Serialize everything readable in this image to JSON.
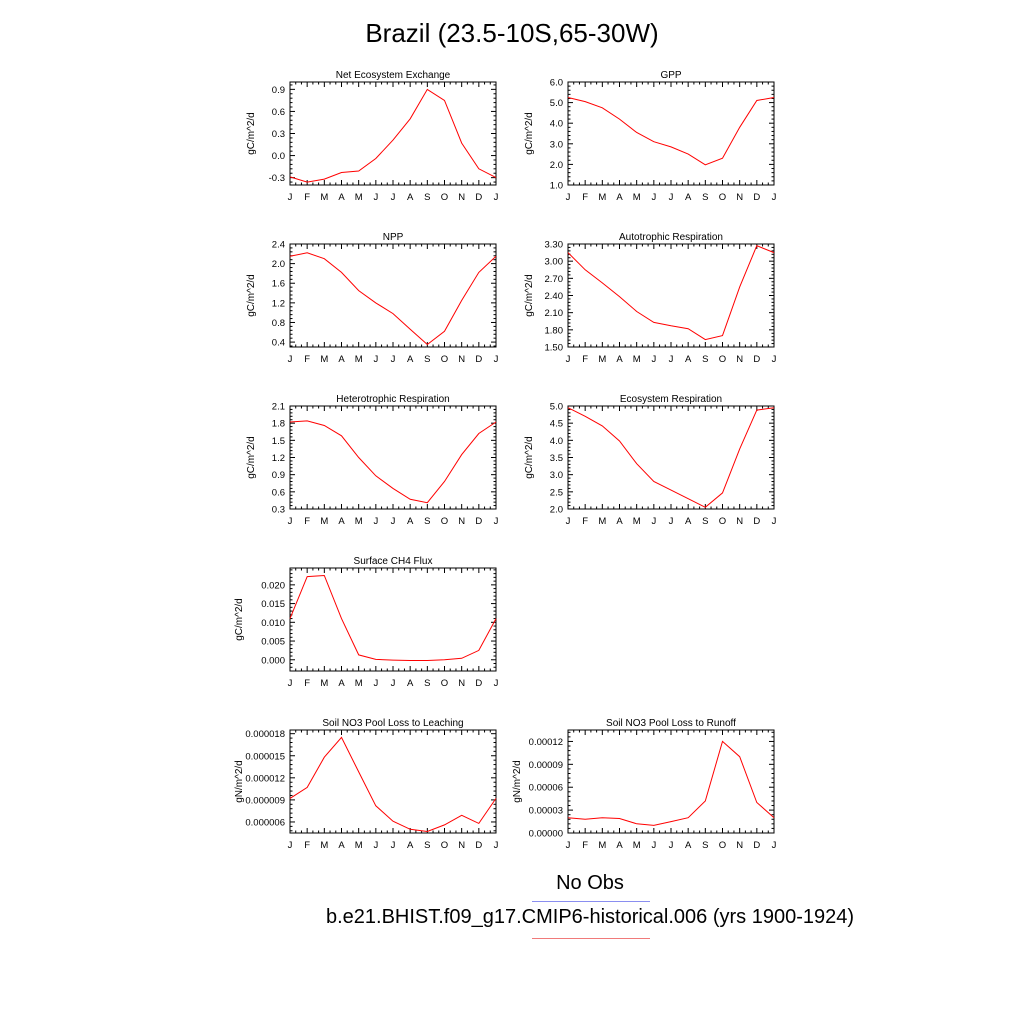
{
  "title": "Brazil (23.5-10S,65-30W)",
  "legend": {
    "obs_label": "No Obs",
    "case_label": "b.e21.BHIST.f09_g17.CMIP6-historical.006 (yrs 1900-1924)",
    "obs_color": "#8a8ef0",
    "case_color": "#f07a7a"
  },
  "line_color": "#ff0000",
  "chart_data": [
    {
      "type": "line",
      "title": "Net Ecosystem Exchange",
      "ylabel": "gC/m^2/d",
      "x": [
        "J",
        "F",
        "M",
        "A",
        "M",
        "J",
        "J",
        "A",
        "S",
        "O",
        "N",
        "D",
        "J"
      ],
      "ylim": [
        -0.4,
        1.0
      ],
      "yticks": [
        "-0.3",
        "0.0",
        "0.3",
        "0.6",
        "0.9"
      ],
      "series": [
        {
          "values": [
            -0.29,
            -0.36,
            -0.32,
            -0.23,
            -0.21,
            -0.04,
            0.21,
            0.5,
            0.9,
            0.75,
            0.17,
            -0.18,
            -0.3
          ]
        }
      ]
    },
    {
      "type": "line",
      "title": "GPP",
      "ylabel": "gC/m^2/d",
      "x": [
        "J",
        "F",
        "M",
        "A",
        "M",
        "J",
        "J",
        "A",
        "S",
        "O",
        "N",
        "D",
        "J"
      ],
      "ylim": [
        1.0,
        6.0
      ],
      "yticks": [
        "1.0",
        "2.0",
        "3.0",
        "4.0",
        "5.0",
        "6.0"
      ],
      "series": [
        {
          "values": [
            5.25,
            5.05,
            4.75,
            4.2,
            3.55,
            3.1,
            2.85,
            2.5,
            1.98,
            2.3,
            3.8,
            5.1,
            5.25
          ]
        }
      ]
    },
    {
      "type": "line",
      "title": "NPP",
      "ylabel": "gC/m^2/d",
      "x": [
        "J",
        "F",
        "M",
        "A",
        "M",
        "J",
        "J",
        "A",
        "S",
        "O",
        "N",
        "D",
        "J"
      ],
      "ylim": [
        0.3,
        2.4
      ],
      "yticks": [
        "0.4",
        "0.8",
        "1.2",
        "1.6",
        "2.0",
        "2.4"
      ],
      "series": [
        {
          "values": [
            2.15,
            2.22,
            2.1,
            1.82,
            1.45,
            1.2,
            0.98,
            0.66,
            0.35,
            0.62,
            1.25,
            1.82,
            2.15
          ]
        }
      ]
    },
    {
      "type": "line",
      "title": "Autotrophic Respiration",
      "ylabel": "gC/m^2/d",
      "x": [
        "J",
        "F",
        "M",
        "A",
        "M",
        "J",
        "J",
        "A",
        "S",
        "O",
        "N",
        "D",
        "J"
      ],
      "ylim": [
        1.5,
        3.3
      ],
      "yticks": [
        "1.50",
        "1.80",
        "2.10",
        "2.40",
        "2.70",
        "3.00",
        "3.30"
      ],
      "series": [
        {
          "values": [
            3.15,
            2.85,
            2.62,
            2.38,
            2.12,
            1.93,
            1.87,
            1.82,
            1.63,
            1.7,
            2.55,
            3.27,
            3.15
          ]
        }
      ]
    },
    {
      "type": "line",
      "title": "Heterotrophic Respiration",
      "ylabel": "gC/m^2/d",
      "x": [
        "J",
        "F",
        "M",
        "A",
        "M",
        "J",
        "J",
        "A",
        "S",
        "O",
        "N",
        "D",
        "J"
      ],
      "ylim": [
        0.3,
        2.1
      ],
      "yticks": [
        "0.3",
        "0.6",
        "0.9",
        "1.2",
        "1.5",
        "1.8",
        "2.1"
      ],
      "series": [
        {
          "values": [
            1.82,
            1.84,
            1.76,
            1.58,
            1.2,
            0.88,
            0.66,
            0.47,
            0.41,
            0.78,
            1.25,
            1.62,
            1.82
          ]
        }
      ]
    },
    {
      "type": "line",
      "title": "Ecosystem Respiration",
      "ylabel": "gC/m^2/d",
      "x": [
        "J",
        "F",
        "M",
        "A",
        "M",
        "J",
        "J",
        "A",
        "S",
        "O",
        "N",
        "D",
        "J"
      ],
      "ylim": [
        2.0,
        5.0
      ],
      "yticks": [
        "2.0",
        "2.5",
        "3.0",
        "3.5",
        "4.0",
        "4.5",
        "5.0"
      ],
      "series": [
        {
          "values": [
            4.95,
            4.7,
            4.42,
            3.98,
            3.32,
            2.8,
            2.55,
            2.3,
            2.05,
            2.47,
            3.75,
            4.88,
            4.95
          ]
        }
      ]
    },
    {
      "type": "line",
      "title": "Surface CH4 Flux",
      "ylabel": "gC/m^2/d",
      "x": [
        "J",
        "F",
        "M",
        "A",
        "M",
        "J",
        "J",
        "A",
        "S",
        "O",
        "N",
        "D",
        "J"
      ],
      "ylim": [
        -0.003,
        0.0245
      ],
      "yticks": [
        "0.000",
        "0.005",
        "0.010",
        "0.015",
        "0.020"
      ],
      "series": [
        {
          "values": [
            0.011,
            0.0222,
            0.0225,
            0.011,
            0.0013,
            0.0001,
            -0.0001,
            -0.0002,
            -0.0002,
            0.0,
            0.0004,
            0.0025,
            0.011
          ]
        }
      ]
    },
    {
      "type": "line",
      "title": "Soil NO3 Pool Loss to Leaching",
      "ylabel": "gN/m^2/d",
      "x": [
        "J",
        "F",
        "M",
        "A",
        "M",
        "J",
        "J",
        "A",
        "S",
        "O",
        "N",
        "D",
        "J"
      ],
      "ylim": [
        4.5e-06,
        1.85e-05
      ],
      "yticks": [
        "0.000006",
        "0.000009",
        "0.000012",
        "0.000015",
        "0.000018"
      ],
      "series": [
        {
          "values": [
            9.2e-06,
            1.07e-05,
            1.48e-05,
            1.75e-05,
            1.28e-05,
            8.2e-06,
            6.1e-06,
            5e-06,
            4.7e-06,
            5.6e-06,
            6.9e-06,
            5.8e-06,
            9.2e-06
          ]
        }
      ]
    },
    {
      "type": "line",
      "title": "Soil NO3 Pool Loss to Runoff",
      "ylabel": "gN/m^2/d",
      "x": [
        "J",
        "F",
        "M",
        "A",
        "M",
        "J",
        "J",
        "A",
        "S",
        "O",
        "N",
        "D",
        "J"
      ],
      "ylim": [
        0.0,
        0.000135
      ],
      "yticks": [
        "0.00000",
        "0.00003",
        "0.00006",
        "0.00009",
        "0.00012"
      ],
      "series": [
        {
          "values": [
            2e-05,
            1.8e-05,
            2e-05,
            1.9e-05,
            1.2e-05,
            1e-05,
            1.5e-05,
            2e-05,
            4.2e-05,
            0.00012,
            0.0001,
            4e-05,
            2e-05
          ]
        }
      ]
    }
  ]
}
